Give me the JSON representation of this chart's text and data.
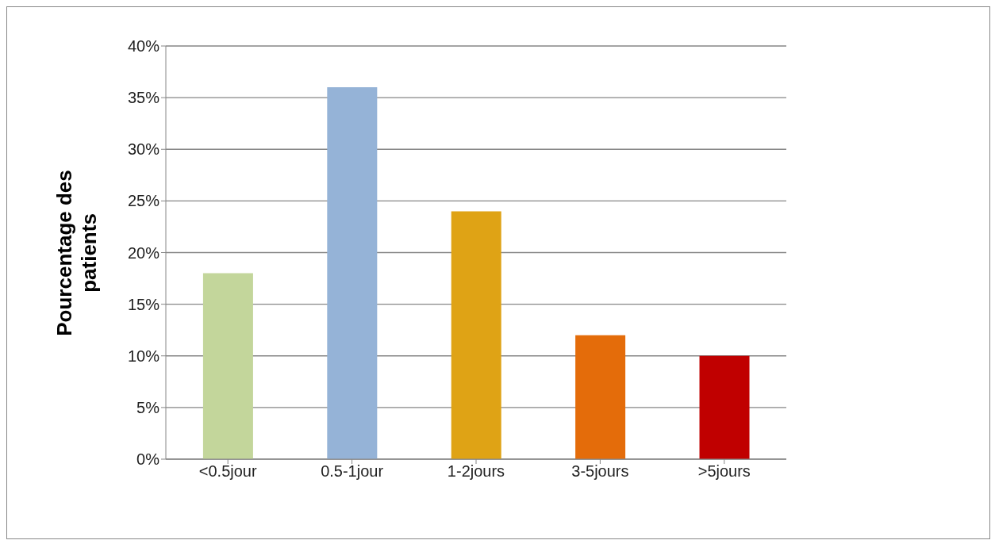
{
  "chart_data": {
    "type": "bar",
    "ylabel": "Pourcentage des patients",
    "categories": [
      "<0.5jour",
      "0.5-1jour",
      "1-2jours",
      "3-5jours",
      ">5jours"
    ],
    "values": [
      18,
      36,
      24,
      12,
      10
    ],
    "colors": [
      "#c3d69b",
      "#95b3d7",
      "#dfa315",
      "#e46c0a",
      "#c00000"
    ],
    "ylim": [
      0,
      40
    ],
    "yticks": [
      {
        "value": 0,
        "label": "0%"
      },
      {
        "value": 5,
        "label": "5%"
      },
      {
        "value": 10,
        "label": "10%"
      },
      {
        "value": 15,
        "label": "15%"
      },
      {
        "value": 20,
        "label": "20%"
      },
      {
        "value": 25,
        "label": "25%"
      },
      {
        "value": 30,
        "label": "30%"
      },
      {
        "value": 35,
        "label": "35%"
      },
      {
        "value": 40,
        "label": "40%"
      }
    ],
    "grid": "y",
    "legend": false
  }
}
